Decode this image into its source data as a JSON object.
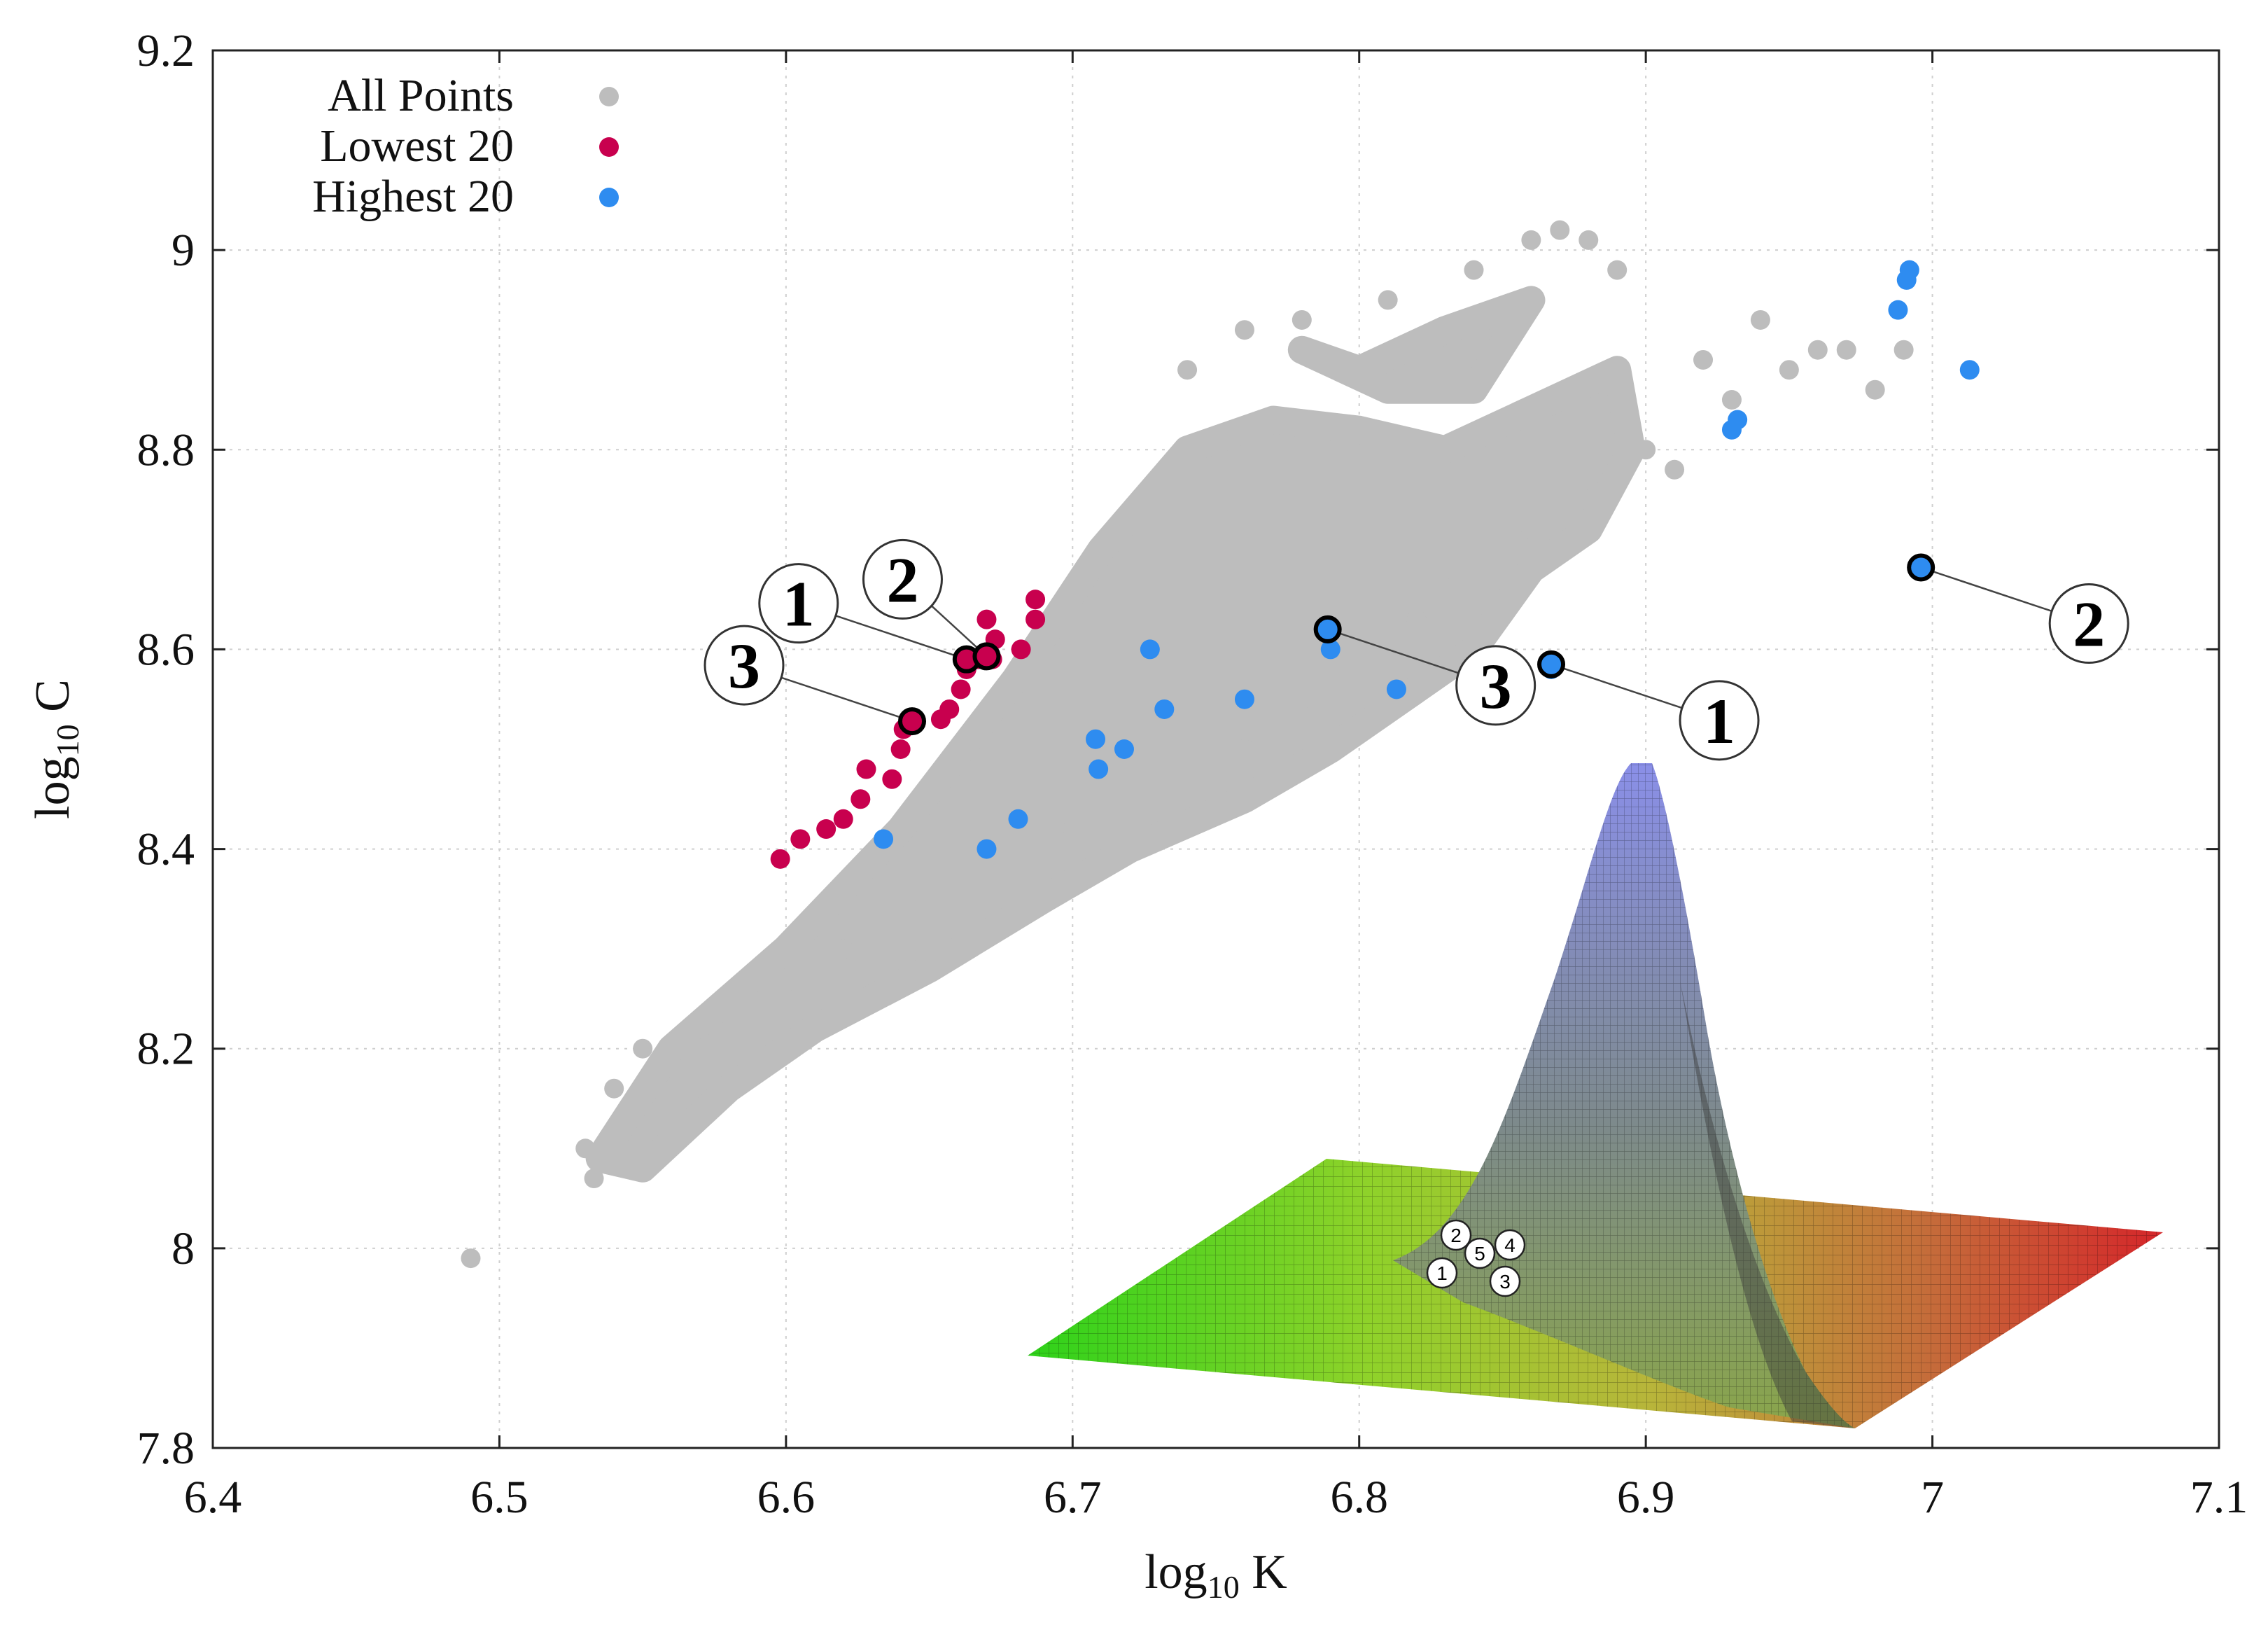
{
  "chart_data": {
    "type": "scatter",
    "xlabel_base": "log",
    "xlabel_sub": "10",
    "xlabel_var": "K",
    "ylabel_base": "log",
    "ylabel_sub": "10",
    "ylabel_var": "C",
    "xlim": [
      6.4,
      7.1
    ],
    "ylim": [
      7.8,
      9.2
    ],
    "xticks": [
      6.4,
      6.5,
      6.6,
      6.7,
      6.8,
      6.9,
      7.0,
      7.1
    ],
    "xtick_labels": [
      "6.4",
      "6.5",
      "6.6",
      "6.7",
      "6.8",
      "6.9",
      "7",
      "7.1"
    ],
    "yticks": [
      7.8,
      8.0,
      8.2,
      8.4,
      8.6,
      8.8,
      9.0,
      9.2
    ],
    "ytick_labels": [
      "7.8",
      "8",
      "8.2",
      "8.4",
      "8.6",
      "8.8",
      "9",
      "9.2"
    ],
    "grid": true,
    "legend_position": "top-left",
    "series": [
      {
        "name": "All Points",
        "color": "#bdbdbd",
        "description": "dense cloud of points along an elongated band",
        "x": [
          6.49,
          6.53,
          6.533,
          6.54,
          6.55,
          6.57,
          6.6,
          6.62,
          6.66,
          6.7,
          6.73,
          6.76,
          6.78,
          6.8,
          6.82,
          6.83,
          6.86,
          6.88,
          6.9,
          6.91,
          6.93,
          6.95,
          6.97,
          6.98,
          6.99,
          6.74,
          6.76,
          6.78,
          6.81,
          6.84,
          6.87,
          6.89,
          6.92,
          6.94,
          6.96,
          6.86,
          6.88
        ],
        "y": [
          7.99,
          8.1,
          8.07,
          8.16,
          8.2,
          8.2,
          8.25,
          8.3,
          8.36,
          8.42,
          8.45,
          8.5,
          8.55,
          8.6,
          8.63,
          8.68,
          8.72,
          8.75,
          8.8,
          8.78,
          8.85,
          8.88,
          8.9,
          8.86,
          8.9,
          8.88,
          8.92,
          8.93,
          8.95,
          8.98,
          9.02,
          8.98,
          8.89,
          8.93,
          8.9,
          9.01,
          9.01
        ]
      },
      {
        "name": "Lowest 20",
        "color": "#c8004e",
        "x": [
          6.598,
          6.605,
          6.614,
          6.62,
          6.626,
          6.628,
          6.637,
          6.64,
          6.641,
          6.654,
          6.657,
          6.661,
          6.663,
          6.667,
          6.672,
          6.67,
          6.673,
          6.682,
          6.687,
          6.687
        ],
        "y": [
          8.39,
          8.41,
          8.42,
          8.43,
          8.45,
          8.48,
          8.47,
          8.5,
          8.52,
          8.53,
          8.54,
          8.56,
          8.58,
          8.59,
          8.59,
          8.63,
          8.61,
          8.6,
          8.63,
          8.65
        ]
      },
      {
        "name": "Highest 20",
        "color": "#2e8cf0",
        "x": [
          6.634,
          6.67,
          6.681,
          6.708,
          6.709,
          6.718,
          6.727,
          6.732,
          6.76,
          6.79,
          6.813,
          6.932,
          6.988,
          6.991,
          6.992,
          7.013,
          6.79,
          6.867,
          6.996,
          6.93
        ],
        "y": [
          8.41,
          8.4,
          8.43,
          8.51,
          8.48,
          8.5,
          8.6,
          8.54,
          8.55,
          8.6,
          8.56,
          8.83,
          8.94,
          8.97,
          8.98,
          8.88,
          8.62,
          8.58,
          8.68,
          8.82
        ]
      }
    ],
    "callouts": [
      {
        "label": "1",
        "point": [
          6.663,
          8.59
        ],
        "group": "lowest"
      },
      {
        "label": "2",
        "point": [
          6.67,
          8.593
        ],
        "group": "lowest"
      },
      {
        "label": "3",
        "point": [
          6.644,
          8.528
        ],
        "group": "lowest"
      },
      {
        "label": "3",
        "point": [
          6.789,
          8.62
        ],
        "group": "highest"
      },
      {
        "label": "1",
        "point": [
          6.867,
          8.585
        ],
        "group": "highest"
      },
      {
        "label": "2",
        "point": [
          6.996,
          8.682
        ],
        "group": "highest"
      }
    ],
    "inset": {
      "type": "3d-surface",
      "markers": [
        "1",
        "2",
        "3",
        "4",
        "5"
      ]
    }
  }
}
